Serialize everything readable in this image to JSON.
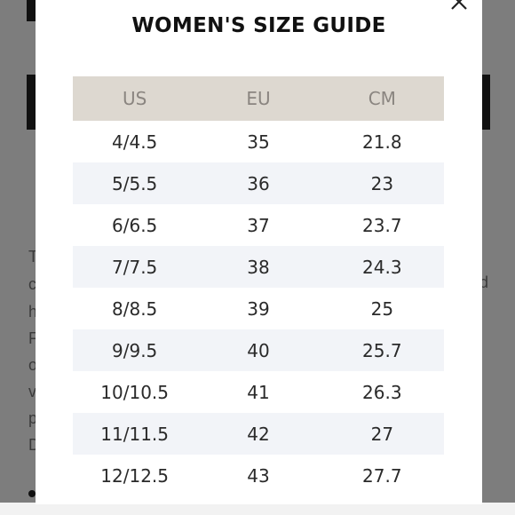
{
  "modal": {
    "title": "WOMEN'S SIZE GUIDE",
    "close_icon": "close-icon"
  },
  "table": {
    "headers": [
      "US",
      "EU",
      "CM"
    ],
    "rows": [
      [
        "4/4.5",
        "35",
        "21.8"
      ],
      [
        "5/5.5",
        "36",
        "23"
      ],
      [
        "6/6.5",
        "37",
        "23.7"
      ],
      [
        "7/7.5",
        "38",
        "24.3"
      ],
      [
        "8/8.5",
        "39",
        "25"
      ],
      [
        "9/9.5",
        "40",
        "25.7"
      ],
      [
        "10/10.5",
        "41",
        "26.3"
      ],
      [
        "11/11.5",
        "42",
        "27"
      ],
      [
        "12/12.5",
        "43",
        "27.7"
      ]
    ]
  },
  "background": {
    "left_letters": [
      "T",
      "c",
      "h",
      "F",
      "o",
      "v",
      "p",
      "D"
    ],
    "right_letter": "d"
  },
  "colors": {
    "header_bg": "#ddd8d0",
    "row_shade": "#f2f4f8",
    "overlay": "#7d7d7d"
  }
}
